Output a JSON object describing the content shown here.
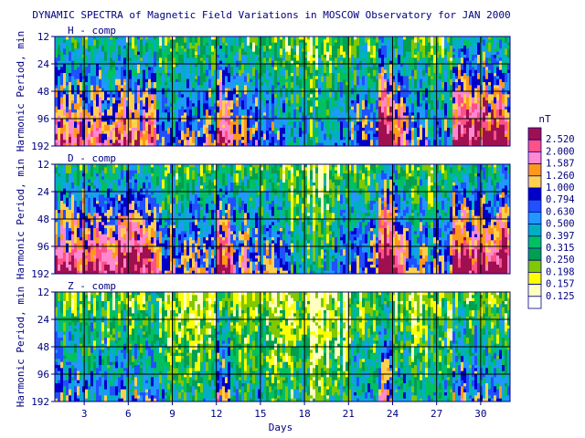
{
  "chart_data": {
    "type": "heatmap",
    "title": "DYNAMIC SPECTRA of Magnetic Field Variations in MOSCOW Observatory for JAN 2000",
    "xlabel": "Days",
    "ylabel": "Harmonic Period, min",
    "x_range": [
      1,
      32
    ],
    "x_ticks": [
      "3",
      "6",
      "9",
      "12",
      "15",
      "18",
      "21",
      "24",
      "27",
      "30"
    ],
    "x_tick_values": [
      3,
      6,
      9,
      12,
      15,
      18,
      21,
      24,
      27,
      30
    ],
    "y_scale": "log",
    "y_ticks": [
      "12",
      "24",
      "48",
      "96",
      "192"
    ],
    "y_tick_values": [
      12,
      24,
      48,
      96,
      192
    ],
    "panels": [
      {
        "label": "H - comp",
        "activity": [
          0.75,
          0.8,
          0.72,
          0.7,
          0.78,
          0.8,
          0.68,
          0.55,
          0.5,
          0.5,
          0.58,
          0.85,
          0.6,
          0.55,
          0.5,
          0.45,
          0.35,
          0.3,
          0.35,
          0.45,
          0.5,
          0.55,
          0.95,
          0.75,
          0.55,
          0.5,
          0.45,
          0.85,
          0.9,
          0.88,
          0.85,
          0.8
        ]
      },
      {
        "label": "D - comp",
        "activity": [
          0.8,
          0.85,
          0.85,
          0.82,
          0.85,
          0.88,
          0.75,
          0.6,
          0.55,
          0.55,
          0.6,
          0.88,
          0.65,
          0.6,
          0.55,
          0.5,
          0.35,
          0.25,
          0.3,
          0.4,
          0.45,
          0.6,
          0.98,
          0.75,
          0.55,
          0.5,
          0.5,
          0.9,
          0.92,
          0.9,
          0.88,
          0.85
        ]
      },
      {
        "label": "Z - comp",
        "activity": [
          0.45,
          0.45,
          0.42,
          0.4,
          0.45,
          0.45,
          0.4,
          0.32,
          0.3,
          0.3,
          0.32,
          0.6,
          0.32,
          0.3,
          0.28,
          0.25,
          0.2,
          0.18,
          0.2,
          0.25,
          0.35,
          0.3,
          0.6,
          0.35,
          0.3,
          0.28,
          0.28,
          0.5,
          0.45,
          0.5,
          0.45,
          0.42
        ]
      }
    ],
    "colorbar": {
      "unit": "nT",
      "levels": [
        "2.520",
        "2.000",
        "1.587",
        "1.260",
        "1.000",
        "0.794",
        "0.630",
        "0.500",
        "0.397",
        "0.315",
        "0.250",
        "0.198",
        "0.157",
        "0.125"
      ],
      "colors": [
        "#a01050",
        "#ff5088",
        "#ff88d0",
        "#ff9818",
        "#ffd050",
        "#0000c8",
        "#2050ff",
        "#2098ff",
        "#00b0c0",
        "#00c060",
        "#00a050",
        "#80c800",
        "#ffff00",
        "#ffffc0"
      ]
    },
    "grid": true
  }
}
